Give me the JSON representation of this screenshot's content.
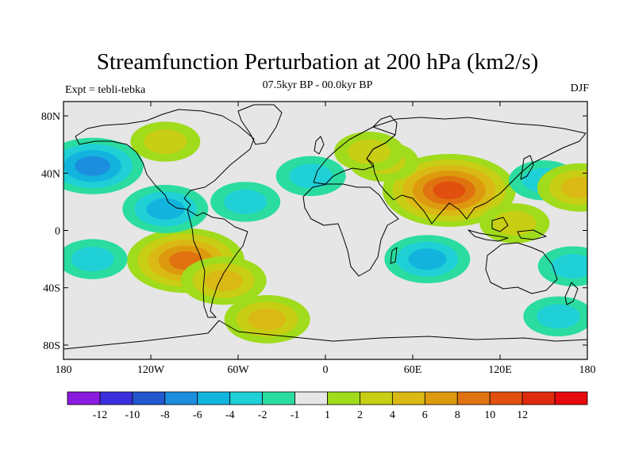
{
  "chart_data": {
    "type": "contour-map",
    "title": "Streamfunction Perturbation at 200 hPa (km2/s)",
    "subtitle": "07.5kyr BP - 00.0kyr BP",
    "left_label": "Expt = tebli-tebka",
    "right_label": "DJF",
    "x_ticks": [
      {
        "value": -180,
        "label": "180"
      },
      {
        "value": -120,
        "label": "120W"
      },
      {
        "value": -60,
        "label": "60W"
      },
      {
        "value": 0,
        "label": "0"
      },
      {
        "value": 60,
        "label": "60E"
      },
      {
        "value": 120,
        "label": "120E"
      },
      {
        "value": 180,
        "label": "180"
      }
    ],
    "y_ticks": [
      {
        "value": 80,
        "label": "80N"
      },
      {
        "value": 40,
        "label": "40N"
      },
      {
        "value": 0,
        "label": "0"
      },
      {
        "value": -40,
        "label": "40S"
      },
      {
        "value": -80,
        "label": "80S"
      }
    ],
    "xlim": [
      -180,
      180
    ],
    "ylim": [
      -90,
      90
    ],
    "colorbar": {
      "colors": [
        "#8c1be0",
        "#3b2fdb",
        "#2257cf",
        "#1c8ede",
        "#12b4de",
        "#1fd0d6",
        "#2bdca0",
        "#e6e6e6",
        "#a0db1c",
        "#c8ce14",
        "#dbb914",
        "#dd9a0f",
        "#e0720f",
        "#e14f0f",
        "#e02a0d",
        "#e6090d"
      ],
      "labels": [
        "-12",
        "-10",
        "-8",
        "-6",
        "-4",
        "-2",
        "-1",
        "1",
        "2",
        "4",
        "6",
        "8",
        "10",
        "12"
      ]
    },
    "anomalies": [
      {
        "lon": 85,
        "lat": 28,
        "value": 10
      },
      {
        "lon": 40,
        "lat": 48,
        "value": 2
      },
      {
        "lon": -96,
        "lat": -21,
        "value": 8
      },
      {
        "lon": -70,
        "lat": -35,
        "value": 4
      },
      {
        "lon": -110,
        "lat": 15,
        "value": -4
      },
      {
        "lon": -160,
        "lat": 45,
        "value": -6
      },
      {
        "lon": -10,
        "lat": 38,
        "value": -2
      },
      {
        "lon": 30,
        "lat": 55,
        "value": 2
      },
      {
        "lon": 70,
        "lat": -20,
        "value": -4
      },
      {
        "lon": -160,
        "lat": -20,
        "value": -2
      },
      {
        "lon": 170,
        "lat": -25,
        "value": -2
      },
      {
        "lon": 150,
        "lat": 35,
        "value": -2
      },
      {
        "lon": 175,
        "lat": 30,
        "value": 4
      },
      {
        "lon": 130,
        "lat": 5,
        "value": 2
      },
      {
        "lon": -55,
        "lat": 20,
        "value": -2
      },
      {
        "lon": -40,
        "lat": -62,
        "value": 4
      },
      {
        "lon": -110,
        "lat": 62,
        "value": 2
      },
      {
        "lon": 160,
        "lat": -60,
        "value": -2
      }
    ]
  }
}
